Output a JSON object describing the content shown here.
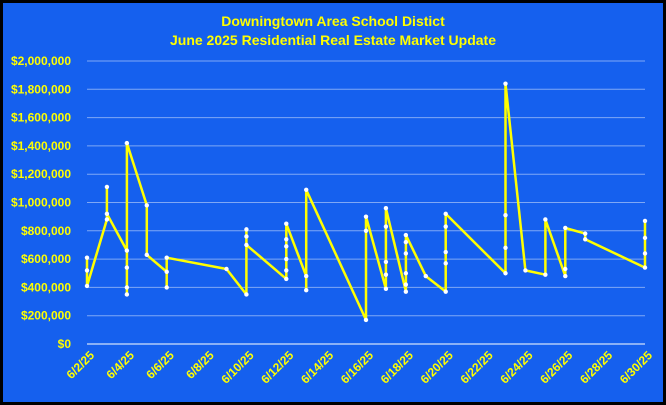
{
  "chart_data": {
    "type": "line",
    "title": "Downingtown Area School Distict",
    "subtitle": "June 2025 Residential Real Estate Market Update",
    "xlabel": "",
    "ylabel": "",
    "ylim": [
      0,
      2000000
    ],
    "y_ticks": [
      0,
      200000,
      400000,
      600000,
      800000,
      1000000,
      1200000,
      1400000,
      1600000,
      1800000,
      2000000
    ],
    "y_tick_labels": [
      "$0",
      "$200,000",
      "$400,000",
      "$600,000",
      "$800,000",
      "$1,000,000",
      "$1,200,000",
      "$1,400,000",
      "$1,600,000",
      "$1,800,000",
      "$2,000,000"
    ],
    "x_range": [
      "2025-06-02",
      "2025-06-30"
    ],
    "x_ticks": [
      "2025-06-02",
      "2025-06-04",
      "2025-06-06",
      "2025-06-08",
      "2025-06-10",
      "2025-06-12",
      "2025-06-14",
      "2025-06-16",
      "2025-06-18",
      "2025-06-20",
      "2025-06-22",
      "2025-06-24",
      "2025-06-26",
      "2025-06-28",
      "2025-06-30"
    ],
    "x_tick_labels": [
      "6/2/25",
      "6/4/25",
      "6/6/25",
      "6/8/25",
      "6/10/25",
      "6/12/25",
      "6/14/25",
      "6/16/25",
      "6/18/25",
      "6/20/25",
      "6/22/25",
      "6/24/25",
      "6/26/25",
      "6/28/25",
      "6/30/25"
    ],
    "grid": true,
    "background_color": "#1560ee",
    "line_color": "#ffff00",
    "marker_color": "#ffffff",
    "text_color": "#ffff00",
    "points": [
      {
        "x": "2025-06-02",
        "y": [
          610000,
          520000,
          410000
        ]
      },
      {
        "x": "2025-06-03",
        "y": [
          880000,
          1110000,
          920000
        ]
      },
      {
        "x": "2025-06-04",
        "y": [
          660000,
          540000,
          400000,
          350000,
          1420000
        ]
      },
      {
        "x": "2025-06-05",
        "y": [
          980000,
          630000
        ]
      },
      {
        "x": "2025-06-06",
        "y": [
          510000,
          400000,
          610000
        ]
      },
      {
        "x": "2025-06-09",
        "y": [
          530000
        ]
      },
      {
        "x": "2025-06-10",
        "y": [
          350000,
          810000,
          760000,
          700000
        ]
      },
      {
        "x": "2025-06-12",
        "y": [
          460000,
          520000,
          600000,
          690000,
          740000,
          850000
        ]
      },
      {
        "x": "2025-06-13",
        "y": [
          480000,
          380000,
          1090000
        ]
      },
      {
        "x": "2025-06-16",
        "y": [
          170000,
          800000,
          900000
        ]
      },
      {
        "x": "2025-06-17",
        "y": [
          390000,
          490000,
          580000,
          830000,
          960000
        ]
      },
      {
        "x": "2025-06-18",
        "y": [
          370000,
          420000,
          500000,
          640000,
          720000,
          770000
        ]
      },
      {
        "x": "2025-06-19",
        "y": [
          480000
        ]
      },
      {
        "x": "2025-06-20",
        "y": [
          370000,
          570000,
          650000,
          830000,
          920000
        ]
      },
      {
        "x": "2025-06-23",
        "y": [
          500000,
          680000,
          910000,
          1840000
        ]
      },
      {
        "x": "2025-06-24",
        "y": [
          520000
        ]
      },
      {
        "x": "2025-06-25",
        "y": [
          490000,
          880000
        ]
      },
      {
        "x": "2025-06-26",
        "y": [
          480000,
          530000,
          820000
        ]
      },
      {
        "x": "2025-06-27",
        "y": [
          780000,
          740000
        ]
      },
      {
        "x": "2025-06-30",
        "y": [
          540000,
          640000,
          750000,
          870000
        ]
      }
    ]
  }
}
